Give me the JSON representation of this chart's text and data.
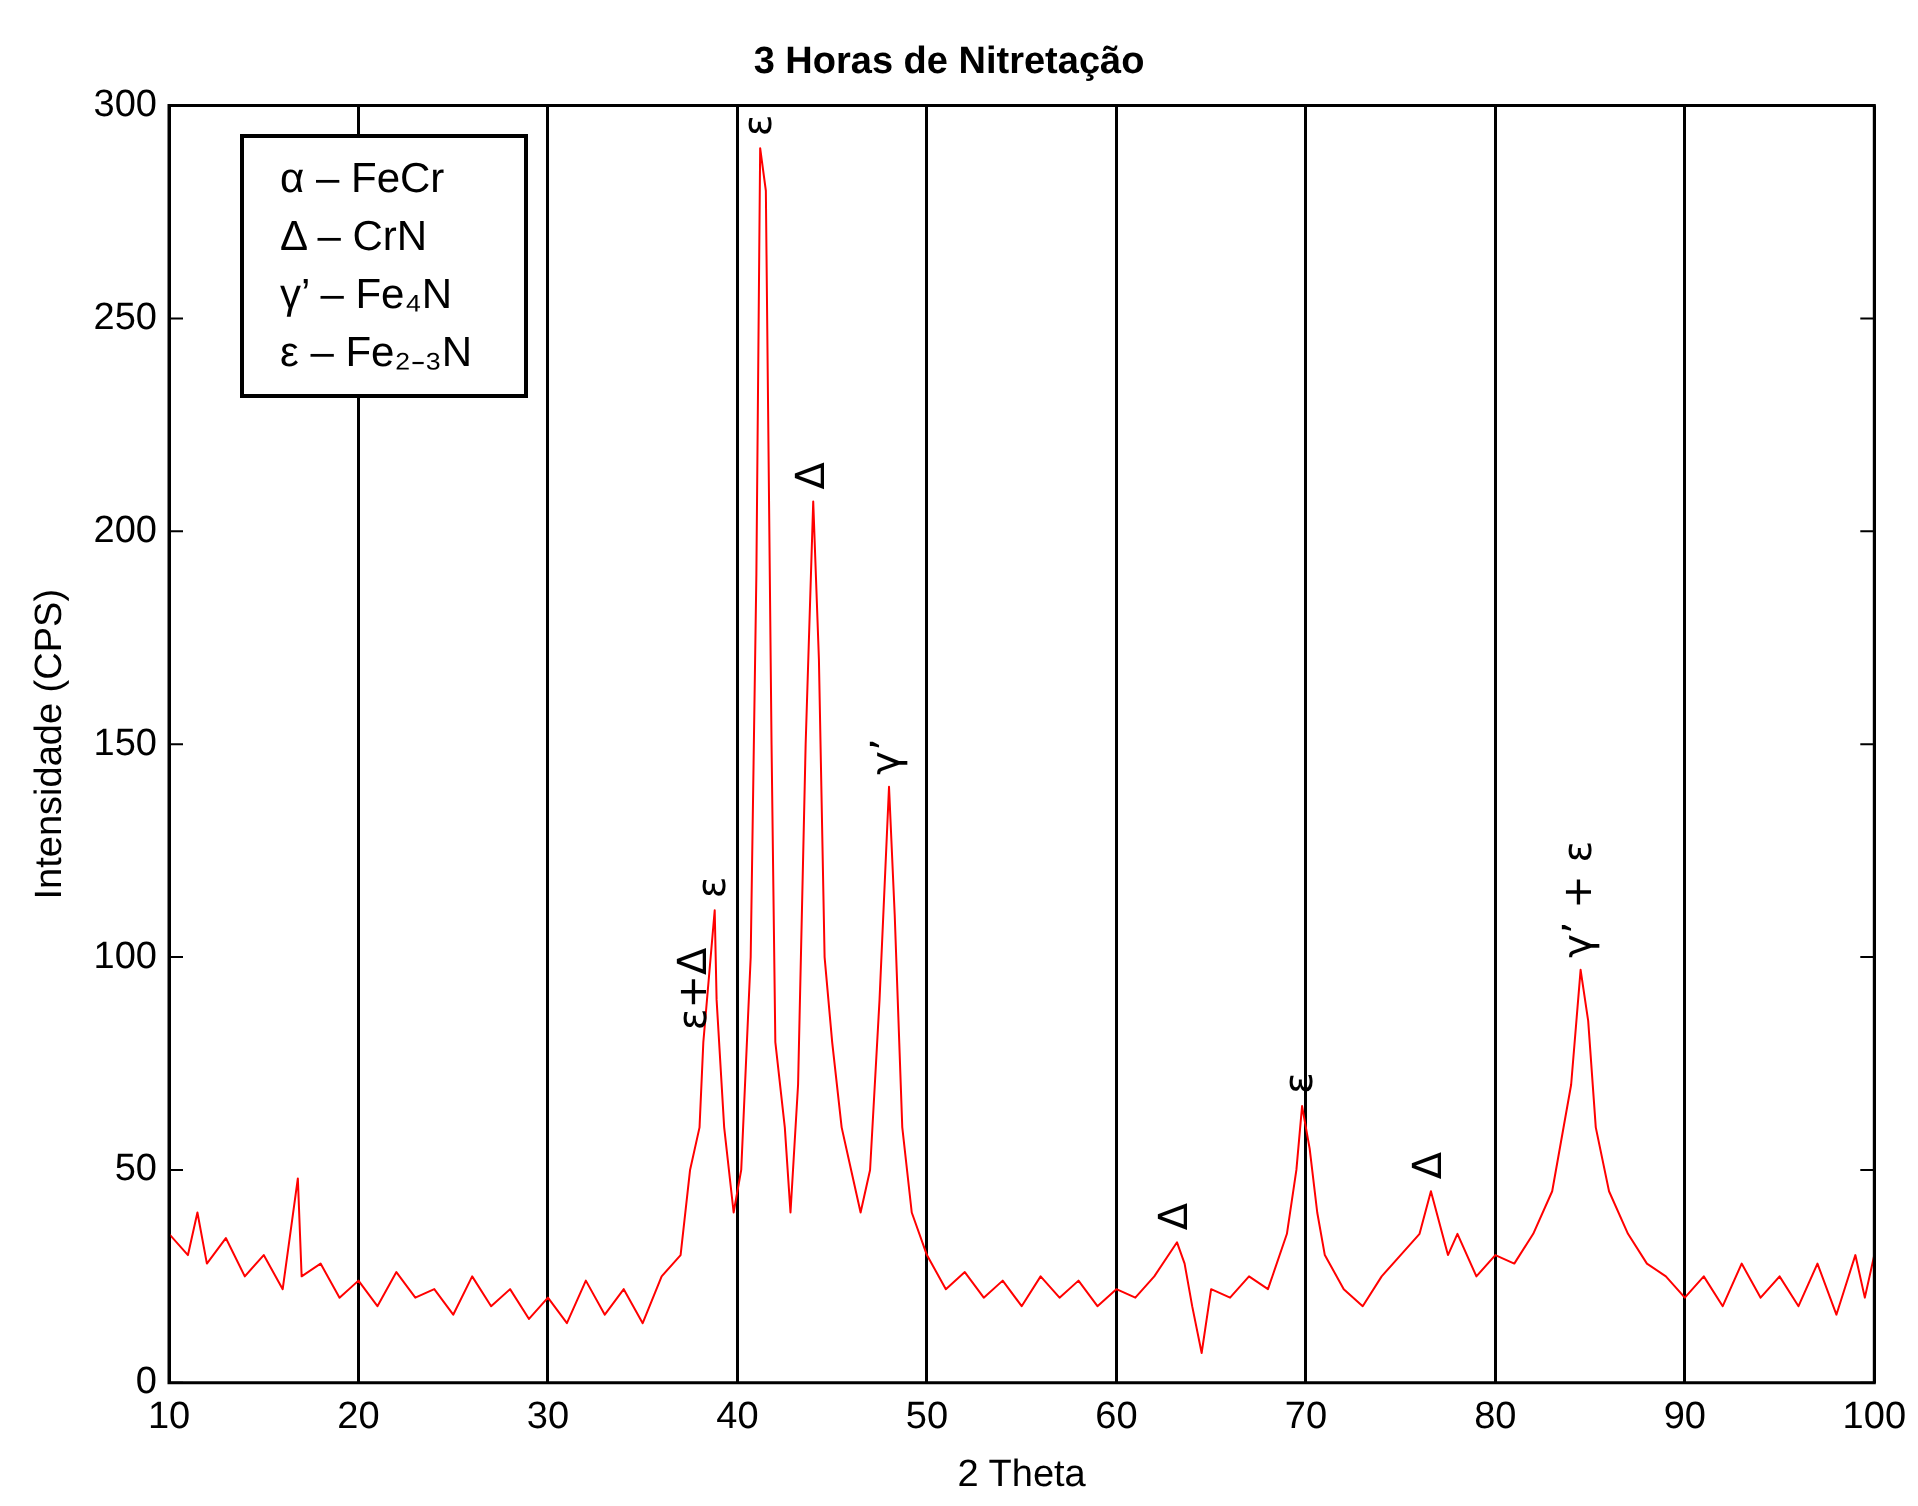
{
  "chart_data": {
    "type": "line",
    "title": "3 Horas de Nitretação",
    "xlabel": "2 Theta",
    "ylabel": "Intensidade (CPS)",
    "x": [
      10,
      11,
      11.5,
      12,
      13,
      14,
      15,
      16,
      16.8,
      17,
      18,
      19,
      20,
      21,
      22,
      23,
      24,
      25,
      26,
      27,
      28,
      29,
      30,
      31,
      32,
      33,
      34,
      35,
      36,
      37,
      37.5,
      38,
      38.2,
      38.8,
      38.9,
      39.3,
      39.8,
      40.2,
      40.7,
      41,
      41.2,
      41.5,
      41.8,
      42,
      42.5,
      42.8,
      43.2,
      43.6,
      44,
      44.3,
      44.6,
      45,
      45.5,
      46,
      46.5,
      47,
      47.5,
      48,
      48.3,
      48.7,
      49.2,
      50,
      51,
      52,
      53,
      54,
      55,
      56,
      57,
      58,
      59,
      60,
      61,
      62,
      63.2,
      63.6,
      64,
      64.5,
      65,
      66,
      67,
      68,
      69,
      69.5,
      69.8,
      70.2,
      70.6,
      71,
      72,
      73,
      74,
      75,
      76,
      76.6,
      77.5,
      78,
      79,
      80,
      81,
      82,
      83,
      84,
      84.5,
      84.9,
      85.3,
      86,
      87,
      88,
      89,
      90,
      91,
      92,
      93,
      94,
      95,
      96,
      97,
      98,
      99,
      99.5,
      100
    ],
    "series": [
      {
        "color": "#ff0000",
        "values": [
          35,
          30,
          40,
          28,
          34,
          25,
          30,
          22,
          48,
          25,
          28,
          20,
          24,
          18,
          26,
          20,
          22,
          16,
          25,
          18,
          22,
          15,
          20,
          14,
          24,
          16,
          22,
          14,
          25,
          30,
          50,
          60,
          80,
          111,
          90,
          60,
          40,
          50,
          100,
          190,
          290,
          280,
          150,
          80,
          60,
          40,
          70,
          150,
          207,
          170,
          100,
          80,
          60,
          50,
          40,
          50,
          90,
          140,
          110,
          60,
          40,
          30,
          22,
          26,
          20,
          24,
          18,
          25,
          20,
          24,
          18,
          22,
          20,
          25,
          33,
          28,
          18,
          7,
          22,
          20,
          25,
          22,
          35,
          50,
          65,
          55,
          40,
          30,
          22,
          18,
          25,
          30,
          35,
          45,
          30,
          35,
          25,
          30,
          28,
          35,
          45,
          70,
          97,
          85,
          60,
          45,
          35,
          28,
          25,
          20,
          25,
          18,
          28,
          20,
          25,
          18,
          28,
          16,
          30,
          20,
          30
        ]
      }
    ],
    "xlim": [
      10,
      100
    ],
    "xticks": [
      10,
      20,
      30,
      40,
      50,
      60,
      70,
      80,
      90,
      100
    ],
    "ylim": [
      0,
      300
    ],
    "yticks": [
      0,
      50,
      100,
      150,
      200,
      250,
      300
    ],
    "grid": "x",
    "legend": false,
    "marker": "none",
    "line_style": "solid",
    "annotations": [
      "α – FeCr",
      "Δ – CrN",
      "γ’ – Fe₄N",
      "ε – Fe₂₋₃N",
      {
        "text": "ε+Δ",
        "x": 37.8,
        "y": 80
      },
      {
        "text": "ε",
        "x": 38.8,
        "y": 111
      },
      {
        "text": "ε",
        "x": 41.2,
        "y": 290
      },
      {
        "text": "Δ",
        "x": 44,
        "y": 207
      },
      {
        "text": "γ’",
        "x": 48,
        "y": 140
      },
      {
        "text": "Δ",
        "x": 63.2,
        "y": 33
      },
      {
        "text": "ε",
        "x": 69.8,
        "y": 65
      },
      {
        "text": "Δ",
        "x": 76.6,
        "y": 45
      },
      {
        "text": "γ’ + ε",
        "x": 84.5,
        "y": 97
      }
    ]
  }
}
